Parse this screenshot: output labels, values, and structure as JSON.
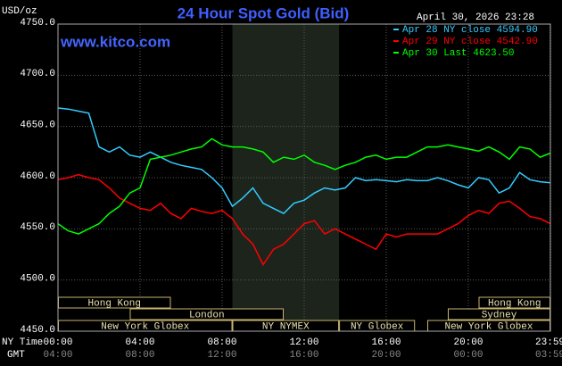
{
  "chart_data": {
    "type": "line",
    "title": "24 Hour Spot Gold (Bid)",
    "subtitle": "www.kitco.com",
    "timestamp": "April 30, 2026 23:28",
    "ylabel": "USD/oz",
    "xlabel": "NY Time",
    "x2label": "GMT",
    "xlim": [
      0,
      24
    ],
    "ylim": [
      4450,
      4750
    ],
    "yticks": [
      {
        "value": 4450,
        "label": "4450.0"
      },
      {
        "value": 4500,
        "label": "4500.0"
      },
      {
        "value": 4550,
        "label": "4550.0"
      },
      {
        "value": 4600,
        "label": "4600.0"
      },
      {
        "value": 4650,
        "label": "4650.0"
      },
      {
        "value": 4700,
        "label": "4700.0"
      },
      {
        "value": 4750,
        "label": "4750.0"
      }
    ],
    "xticks": [
      {
        "value": 0,
        "label": "00:00"
      },
      {
        "value": 4,
        "label": "04:00"
      },
      {
        "value": 8,
        "label": "08:00"
      },
      {
        "value": 12,
        "label": "12:00"
      },
      {
        "value": 16,
        "label": "16:00"
      },
      {
        "value": 20,
        "label": "20:00"
      },
      {
        "value": 23.98,
        "label": "23:59"
      }
    ],
    "x2ticks": [
      {
        "value": 0,
        "label": "04:00"
      },
      {
        "value": 4,
        "label": "08:00"
      },
      {
        "value": 8,
        "label": "12:00"
      },
      {
        "value": 12,
        "label": "16:00"
      },
      {
        "value": 16,
        "label": "20:00"
      },
      {
        "value": 20,
        "label": "00:00"
      },
      {
        "value": 23.98,
        "label": "03:59"
      }
    ],
    "grid": true,
    "x": [
      0,
      0.5,
      1,
      1.5,
      2,
      2.5,
      3,
      3.5,
      4,
      4.5,
      5,
      5.5,
      6,
      6.5,
      7,
      7.5,
      8,
      8.5,
      9,
      9.5,
      10,
      10.5,
      11,
      11.5,
      12,
      12.5,
      13,
      13.5,
      14,
      14.5,
      15,
      15.5,
      16,
      16.5,
      17,
      17.5,
      18,
      18.5,
      19,
      19.5,
      20,
      20.5,
      21,
      21.5,
      22,
      22.5,
      23,
      23.5,
      24
    ],
    "series": [
      {
        "name": "Apr 28 NY close 4594.90",
        "color": "#33ccff",
        "values": [
          4668,
          4667,
          4665,
          4663,
          4630,
          4625,
          4630,
          4622,
          4620,
          4625,
          4620,
          4615,
          4612,
          4610,
          4608,
          4600,
          4590,
          4572,
          4580,
          4590,
          4575,
          4570,
          4565,
          4575,
          4578,
          4585,
          4590,
          4588,
          4590,
          4600,
          4597,
          4598,
          4597,
          4596,
          4598,
          4597,
          4597,
          4600,
          4597,
          4593,
          4590,
          4600,
          4598,
          4585,
          4590,
          4605,
          4598,
          4596,
          4595
        ]
      },
      {
        "name": "Apr 29 NY close 4542.90",
        "color": "#ff0000",
        "values": [
          4598,
          4600,
          4603,
          4600,
          4598,
          4590,
          4580,
          4575,
          4570,
          4568,
          4575,
          4565,
          4560,
          4570,
          4567,
          4565,
          4568,
          4560,
          4545,
          4535,
          4515,
          4530,
          4535,
          4545,
          4555,
          4558,
          4545,
          4550,
          4545,
          4540,
          4535,
          4530,
          4545,
          4542,
          4545,
          4545,
          4545,
          4545,
          4550,
          4555,
          4563,
          4568,
          4565,
          4575,
          4577,
          4570,
          4562,
          4560,
          4555
        ]
      },
      {
        "name": "Apr 30 Last 4623.50",
        "color": "#00ff00",
        "values": [
          4555,
          4548,
          4545,
          4550,
          4555,
          4565,
          4572,
          4585,
          4590,
          4618,
          4620,
          4622,
          4625,
          4628,
          4630,
          4638,
          4632,
          4630,
          4630,
          4628,
          4625,
          4615,
          4620,
          4618,
          4622,
          4615,
          4612,
          4608,
          4612,
          4615,
          4620,
          4622,
          4618,
          4620,
          4620,
          4625,
          4630,
          4630,
          4632,
          4630,
          4628,
          4626,
          4630,
          4625,
          4618,
          4630,
          4628,
          4620,
          4624
        ]
      }
    ],
    "session_rows": [
      [
        {
          "label": "Hong Kong",
          "start": 0,
          "end": 5.5
        },
        {
          "label": "Hong Kong",
          "start": 20.5,
          "end": 24
        }
      ],
      [
        {
          "label": "London",
          "start": 3.5,
          "end": 11
        },
        {
          "label": "Sydney",
          "start": 19,
          "end": 24
        }
      ],
      [
        {
          "label": "New York Globex",
          "start": 0,
          "end": 8.5
        },
        {
          "label": "NY NYMEX",
          "start": 8.5,
          "end": 13.7,
          "shaded": true
        },
        {
          "label": "NY Globex",
          "start": 13.7,
          "end": 17.4
        },
        {
          "label": "New York Globex",
          "start": 18,
          "end": 24
        }
      ]
    ]
  }
}
